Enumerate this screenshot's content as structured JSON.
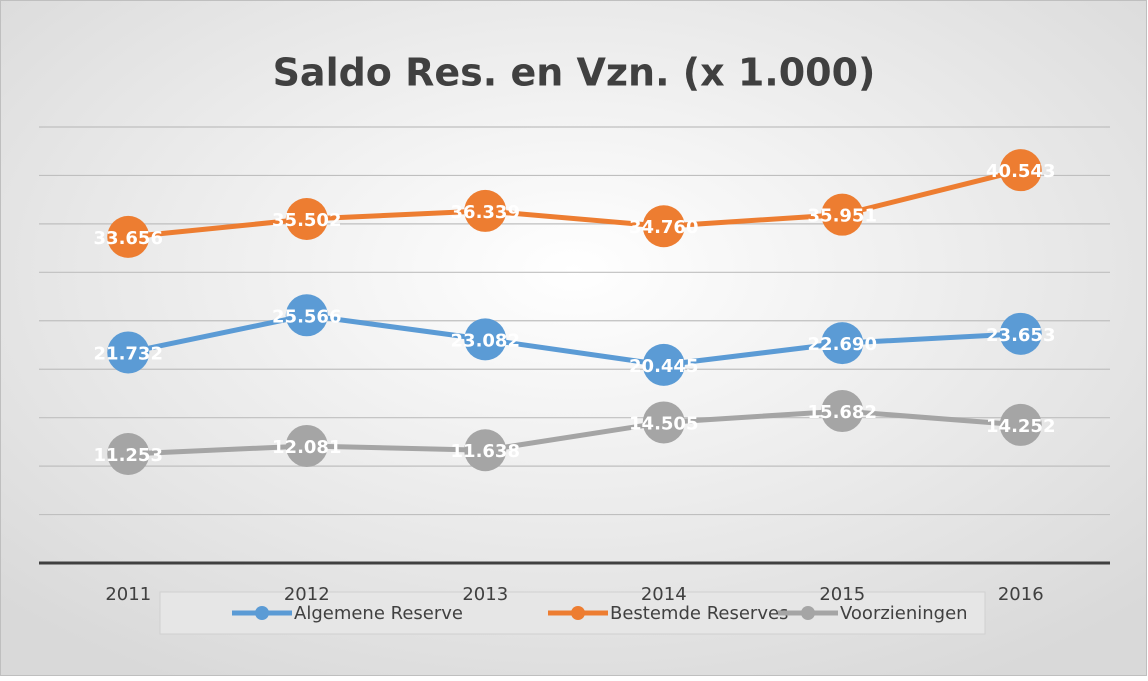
{
  "chart_data": {
    "type": "line",
    "title": "Saldo Res. en Vzn. (x 1.000)",
    "categories": [
      "2011",
      "2012",
      "2013",
      "2014",
      "2015",
      "2016"
    ],
    "series": [
      {
        "name": "Algemene Reserve",
        "color": "#5b9bd5",
        "values": [
          21732,
          25566,
          23082,
          20445,
          22690,
          23653
        ],
        "value_labels": [
          "21.732",
          "25.566",
          "23.082",
          "20.445",
          "22.690",
          "23.653"
        ]
      },
      {
        "name": "Bestemde Reserves",
        "color": "#ed7d31",
        "values": [
          33656,
          35502,
          36339,
          34760,
          35951,
          40543
        ],
        "value_labels": [
          "33.656",
          "35.502",
          "36.339",
          "34.760",
          "35.951",
          "40.543"
        ]
      },
      {
        "name": "Voorzieningen",
        "color": "#a5a5a5",
        "values": [
          11253,
          12081,
          11638,
          14505,
          15682,
          14252
        ],
        "value_labels": [
          "11.253",
          "12.081",
          "11.638",
          "14.505",
          "15.682",
          "14.252"
        ]
      }
    ],
    "ylim": [
      0,
      45000
    ],
    "yticks": [
      0,
      5000,
      10000,
      15000,
      20000,
      25000,
      30000,
      35000,
      40000,
      45000
    ],
    "grid": true,
    "legend": "bottom"
  }
}
